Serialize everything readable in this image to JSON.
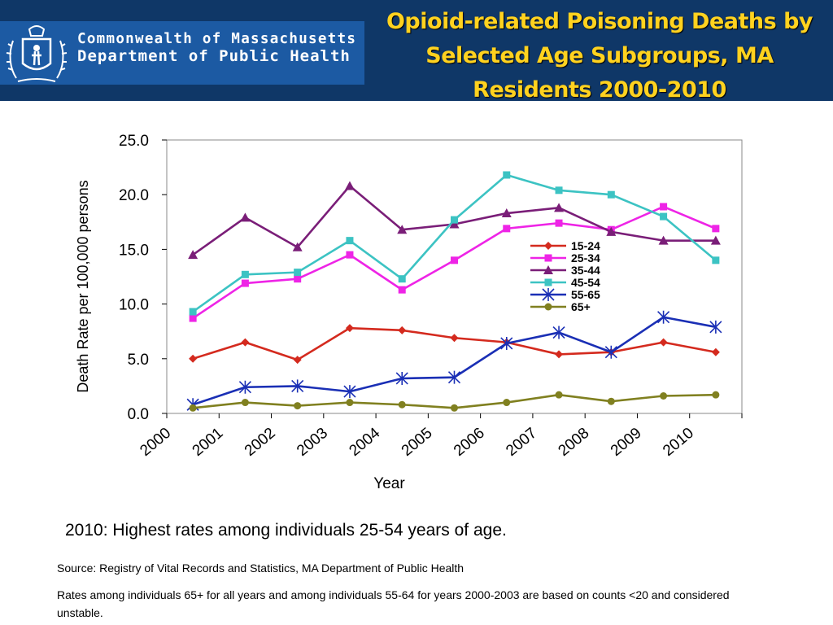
{
  "header": {
    "org_line1": "Commonwealth of Massachusetts",
    "org_line2": "Department of Public Health",
    "title": "Opioid-related Poisoning Deaths by Selected Age Subgroups, MA Residents 2000-2010",
    "logo_icon": "massachusetts-seal-icon"
  },
  "colors": {
    "header_bg": "#0f3767",
    "logo_bg": "#1c5aa3",
    "title_color": "#ffd21f"
  },
  "chart_data": {
    "type": "line",
    "xlabel": "Year",
    "ylabel": "Death Rate per 100,000 persons",
    "x_ticks": [
      "2000",
      "2001",
      "2002",
      "2003",
      "2004",
      "2005",
      "2006",
      "2007",
      "2008",
      "2009",
      "2010"
    ],
    "y_ticks": [
      "0.0",
      "5.0",
      "10.0",
      "15.0",
      "20.0",
      "25.0"
    ],
    "ylim": [
      0,
      25
    ],
    "x": [
      2000,
      2001,
      2002,
      2003,
      2004,
      2005,
      2006,
      2007,
      2008,
      2009,
      2010
    ],
    "grid": false,
    "legend_position": "center-right",
    "series": [
      {
        "name": "15-24",
        "color": "#d42a1e",
        "marker": "diamond",
        "values": [
          5.0,
          6.5,
          4.9,
          7.8,
          7.6,
          6.9,
          6.5,
          5.4,
          5.6,
          6.5,
          5.6
        ]
      },
      {
        "name": "25-34",
        "color": "#ee24e6",
        "marker": "square",
        "values": [
          8.7,
          11.9,
          12.3,
          14.5,
          11.3,
          14.0,
          16.9,
          17.4,
          16.8,
          18.9,
          16.9
        ]
      },
      {
        "name": "35-44",
        "color": "#7a1e78",
        "marker": "triangle",
        "values": [
          14.5,
          17.9,
          15.2,
          20.8,
          16.8,
          17.3,
          18.3,
          18.8,
          16.6,
          15.8,
          15.8
        ]
      },
      {
        "name": "45-54",
        "color": "#3cc3c3",
        "marker": "square",
        "values": [
          9.3,
          12.7,
          12.9,
          15.8,
          12.3,
          17.7,
          21.8,
          20.4,
          20.0,
          18.0,
          14.0
        ]
      },
      {
        "name": "55-65",
        "color": "#1a2fb5",
        "marker": "star",
        "values": [
          0.8,
          2.4,
          2.5,
          2.0,
          3.2,
          3.3,
          6.4,
          7.4,
          5.6,
          8.8,
          7.9
        ]
      },
      {
        "name": "65+",
        "color": "#808020",
        "marker": "circle",
        "values": [
          0.5,
          1.0,
          0.7,
          1.0,
          0.8,
          0.5,
          1.0,
          1.7,
          1.1,
          1.6,
          1.7
        ]
      }
    ]
  },
  "headline": "2010: Highest rates among individuals 25-54 years of age.",
  "source": "Source: Registry of Vital Records and Statistics, MA Department of Public Health",
  "note": "Rates among individuals 65+ for all years and among individuals 55-64 for years 2000-2003  are based on counts <20 and considered unstable."
}
